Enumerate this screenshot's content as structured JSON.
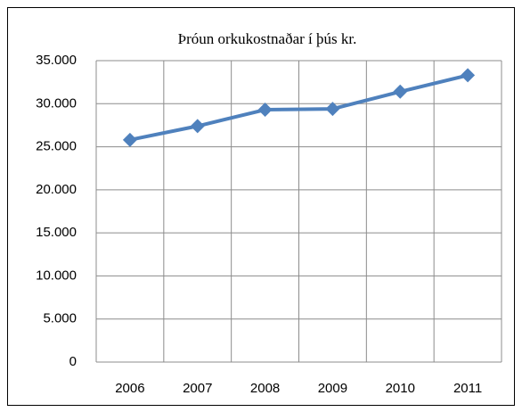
{
  "chart_data": {
    "type": "line",
    "title": "Þróun orkukostnaðar í þús kr.",
    "categories": [
      "2006",
      "2007",
      "2008",
      "2009",
      "2010",
      "2011"
    ],
    "series": [
      {
        "name": null,
        "color": "#4f81bd",
        "values": [
          25800,
          27400,
          29300,
          29400,
          31400,
          33300
        ]
      }
    ],
    "ylim": [
      0,
      35000
    ],
    "yticks": [
      0,
      {
        "value": 5000,
        "label": "5.000"
      },
      {
        "value": 10000,
        "label": "10.000"
      },
      {
        "value": 15000,
        "label": "15.000"
      },
      {
        "value": 20000,
        "label": "20.000"
      },
      {
        "value": 25000,
        "label": "25.000"
      },
      {
        "value": 30000,
        "label": "30.000"
      },
      {
        "value": 35000,
        "label": "35.000"
      }
    ],
    "grid": true
  }
}
